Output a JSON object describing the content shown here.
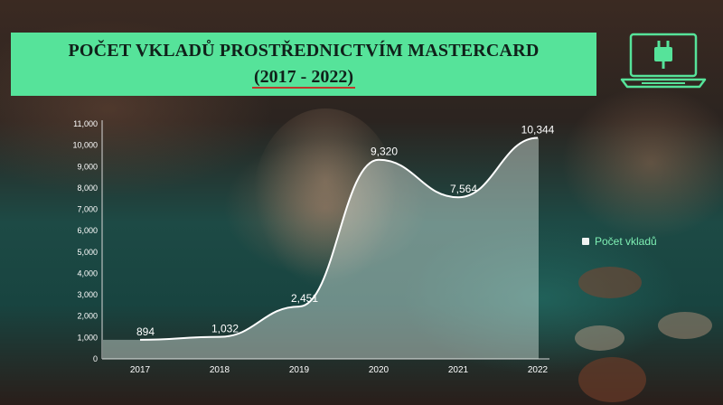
{
  "title": {
    "line1": "POČET VKLADŮ PROSTŘEDNICTVÍM MASTERCARD",
    "line2": "(2017 - 2022)"
  },
  "icon": "laptop-plug-icon",
  "colors": {
    "title_bg": "#56e39a",
    "accent": "#56e39a",
    "underline": "#c0392b",
    "area_fill": "#e6f5ef"
  },
  "legend": {
    "label": "Počet vkladů"
  },
  "chart_data": {
    "type": "area",
    "categories": [
      "2017",
      "2018",
      "2019",
      "2020",
      "2021",
      "2022"
    ],
    "series": [
      {
        "name": "Počet vkladů",
        "values": [
          894,
          1032,
          2451,
          9320,
          7564,
          10344
        ]
      }
    ],
    "data_labels": [
      "894",
      "1,032",
      "2,451",
      "9,320",
      "7,564",
      "10,344"
    ],
    "yticks": [
      "0",
      "1,000",
      "2,000",
      "3,000",
      "4,000",
      "5,000",
      "6,000",
      "7,000",
      "8,000",
      "9,000",
      "10,000",
      "11,000"
    ],
    "ylim": [
      0,
      11000
    ],
    "grid": false,
    "legend_position": "right"
  }
}
